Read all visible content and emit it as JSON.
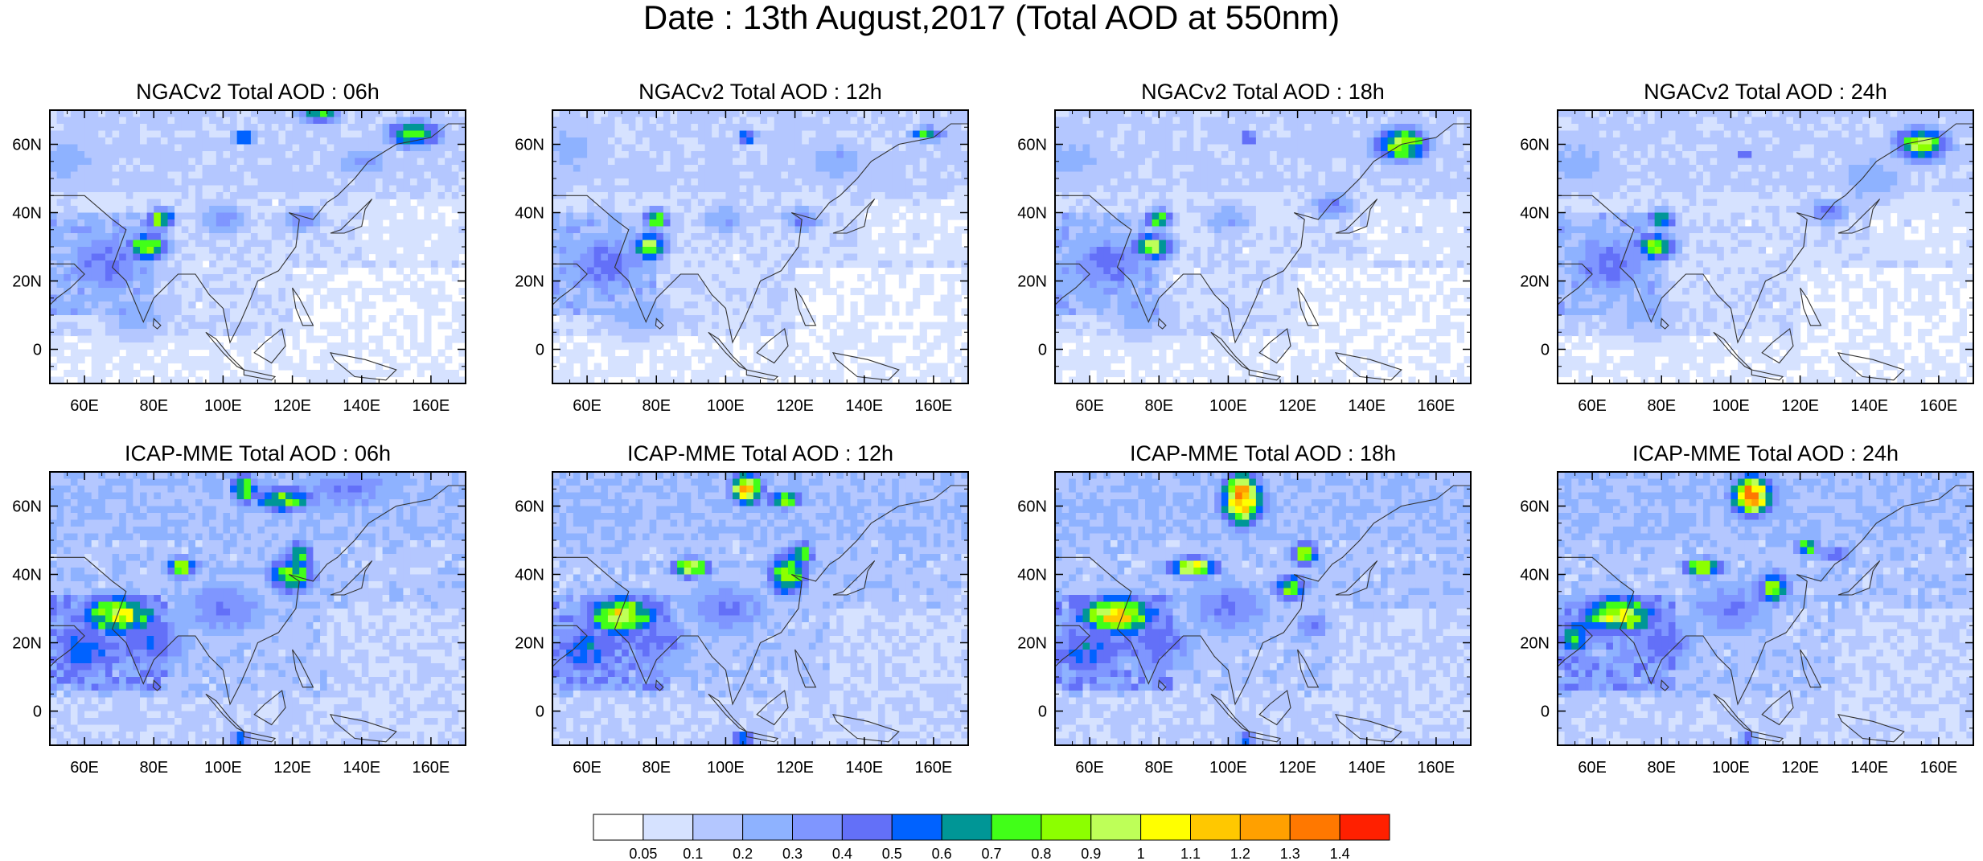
{
  "title": "Date : 13th August,2017 (Total AOD at 550nm)",
  "panels": [
    {
      "title": "NGACv2 Total AOD : 06h",
      "model": "NGACv2",
      "hour": "06h"
    },
    {
      "title": "NGACv2 Total AOD : 12h",
      "model": "NGACv2",
      "hour": "12h"
    },
    {
      "title": "NGACv2 Total AOD : 18h",
      "model": "NGACv2",
      "hour": "18h"
    },
    {
      "title": "NGACv2 Total AOD : 24h",
      "model": "NGACv2",
      "hour": "24h"
    },
    {
      "title": "ICAP-MME Total AOD : 06h",
      "model": "ICAP-MME",
      "hour": "06h"
    },
    {
      "title": "ICAP-MME Total AOD : 12h",
      "model": "ICAP-MME",
      "hour": "12h"
    },
    {
      "title": "ICAP-MME Total AOD : 18h",
      "model": "ICAP-MME",
      "hour": "18h"
    },
    {
      "title": "ICAP-MME Total AOD : 24h",
      "model": "ICAP-MME",
      "hour": "24h"
    }
  ],
  "map": {
    "lon_range": [
      50,
      170
    ],
    "lat_range": [
      -10,
      70
    ],
    "lon_ticks": [
      60,
      80,
      100,
      120,
      140,
      160
    ],
    "lon_tick_labels": [
      "60E",
      "80E",
      "100E",
      "120E",
      "140E",
      "160E"
    ],
    "lat_ticks": [
      0,
      20,
      40,
      60
    ],
    "lat_tick_labels": [
      "0",
      "20N",
      "40N",
      "60N"
    ]
  },
  "legend": {
    "colors": [
      "#ffffff",
      "#d6e2ff",
      "#b4c7ff",
      "#8eb2ff",
      "#7f96ff",
      "#6370f8",
      "#0062ff",
      "#009696",
      "#41ff18",
      "#8cff00",
      "#beff58",
      "#ffff00",
      "#ffc800",
      "#ffa000",
      "#ff7800",
      "#ff2000"
    ],
    "labels": [
      "0.05",
      "0.1",
      "0.2",
      "0.3",
      "0.4",
      "0.5",
      "0.6",
      "0.7",
      "0.8",
      "0.9",
      "1",
      "1.1",
      "1.2",
      "1.3",
      "1.4"
    ]
  },
  "hotspots": [
    [
      [
        78,
        30,
        6,
        4,
        0.9
      ],
      [
        82,
        38,
        4,
        3,
        0.9
      ],
      [
        67,
        25,
        14,
        10,
        0.45
      ],
      [
        155,
        63,
        8,
        4,
        0.85
      ],
      [
        128,
        69,
        6,
        3,
        0.75
      ],
      [
        106,
        62,
        3,
        2,
        0.8
      ],
      [
        100,
        38,
        8,
        5,
        0.35
      ],
      [
        123,
        38,
        6,
        4,
        0.4
      ],
      [
        75,
        10,
        12,
        8,
        0.25
      ],
      [
        55,
        55,
        12,
        10,
        0.25
      ],
      [
        140,
        55,
        10,
        6,
        0.3
      ]
    ],
    [
      [
        78,
        30,
        5,
        4,
        0.95
      ],
      [
        80,
        38,
        4,
        3,
        0.85
      ],
      [
        65,
        25,
        14,
        10,
        0.45
      ],
      [
        158,
        63,
        5,
        2,
        0.75
      ],
      [
        106,
        62,
        3,
        2,
        0.7
      ],
      [
        122,
        38,
        6,
        4,
        0.4
      ],
      [
        100,
        38,
        8,
        5,
        0.3
      ],
      [
        75,
        10,
        12,
        8,
        0.25
      ],
      [
        55,
        58,
        12,
        10,
        0.25
      ],
      [
        132,
        55,
        10,
        6,
        0.3
      ]
    ],
    [
      [
        78,
        30,
        6,
        4,
        0.95
      ],
      [
        80,
        38,
        4,
        3,
        0.8
      ],
      [
        65,
        25,
        14,
        10,
        0.45
      ],
      [
        150,
        60,
        8,
        5,
        0.95
      ],
      [
        130,
        42,
        6,
        4,
        0.45
      ],
      [
        106,
        62,
        3,
        2,
        0.6
      ],
      [
        100,
        38,
        8,
        5,
        0.3
      ],
      [
        75,
        10,
        12,
        8,
        0.25
      ],
      [
        55,
        55,
        12,
        10,
        0.25
      ]
    ],
    [
      [
        78,
        30,
        6,
        4,
        0.9
      ],
      [
        80,
        38,
        4,
        3,
        0.75
      ],
      [
        65,
        25,
        14,
        10,
        0.45
      ],
      [
        155,
        60,
        8,
        5,
        0.9
      ],
      [
        128,
        40,
        6,
        4,
        0.45
      ],
      [
        104,
        57,
        3,
        2,
        0.5
      ],
      [
        75,
        10,
        12,
        8,
        0.25
      ],
      [
        55,
        55,
        12,
        10,
        0.25
      ],
      [
        140,
        50,
        10,
        8,
        0.3
      ]
    ],
    [
      [
        70,
        28,
        12,
        6,
        1.0
      ],
      [
        60,
        18,
        12,
        10,
        0.55
      ],
      [
        88,
        42,
        5,
        3,
        0.9
      ],
      [
        120,
        40,
        7,
        6,
        0.85
      ],
      [
        122,
        46,
        4,
        4,
        0.75
      ],
      [
        106,
        65,
        4,
        5,
        0.85
      ],
      [
        118,
        62,
        10,
        4,
        0.8
      ],
      [
        135,
        65,
        18,
        8,
        0.4
      ],
      [
        105,
        -8,
        3,
        2,
        0.7
      ],
      [
        100,
        30,
        15,
        10,
        0.4
      ],
      [
        80,
        20,
        12,
        10,
        0.45
      ]
    ],
    [
      [
        70,
        28,
        12,
        6,
        1.0
      ],
      [
        60,
        18,
        12,
        10,
        0.55
      ],
      [
        90,
        42,
        6,
        3,
        1.0
      ],
      [
        118,
        40,
        6,
        7,
        0.85
      ],
      [
        122,
        46,
        4,
        4,
        0.8
      ],
      [
        106,
        65,
        5,
        5,
        1.15
      ],
      [
        117,
        62,
        6,
        3,
        0.8
      ],
      [
        105,
        -8,
        3,
        2,
        0.8
      ],
      [
        100,
        30,
        15,
        10,
        0.4
      ],
      [
        80,
        20,
        12,
        10,
        0.45
      ]
    ],
    [
      [
        68,
        28,
        12,
        6,
        1.1
      ],
      [
        60,
        18,
        12,
        10,
        0.55
      ],
      [
        90,
        42,
        7,
        3,
        1.1
      ],
      [
        118,
        36,
        5,
        4,
        0.85
      ],
      [
        122,
        46,
        4,
        4,
        0.85
      ],
      [
        104,
        62,
        6,
        8,
        1.3
      ],
      [
        124,
        25,
        6,
        4,
        0.45
      ],
      [
        105,
        -8,
        3,
        2,
        0.6
      ],
      [
        100,
        30,
        15,
        10,
        0.4
      ],
      [
        80,
        20,
        12,
        10,
        0.45
      ]
    ],
    [
      [
        68,
        28,
        12,
        6,
        1.0
      ],
      [
        55,
        22,
        6,
        6,
        0.7
      ],
      [
        92,
        42,
        6,
        3,
        0.95
      ],
      [
        112,
        36,
        5,
        5,
        0.85
      ],
      [
        122,
        48,
        4,
        3,
        0.8
      ],
      [
        106,
        63,
        6,
        6,
        1.35
      ],
      [
        130,
        46,
        6,
        3,
        0.5
      ],
      [
        105,
        -8,
        3,
        2,
        0.55
      ],
      [
        100,
        30,
        15,
        10,
        0.4
      ],
      [
        80,
        20,
        12,
        10,
        0.45
      ]
    ]
  ]
}
